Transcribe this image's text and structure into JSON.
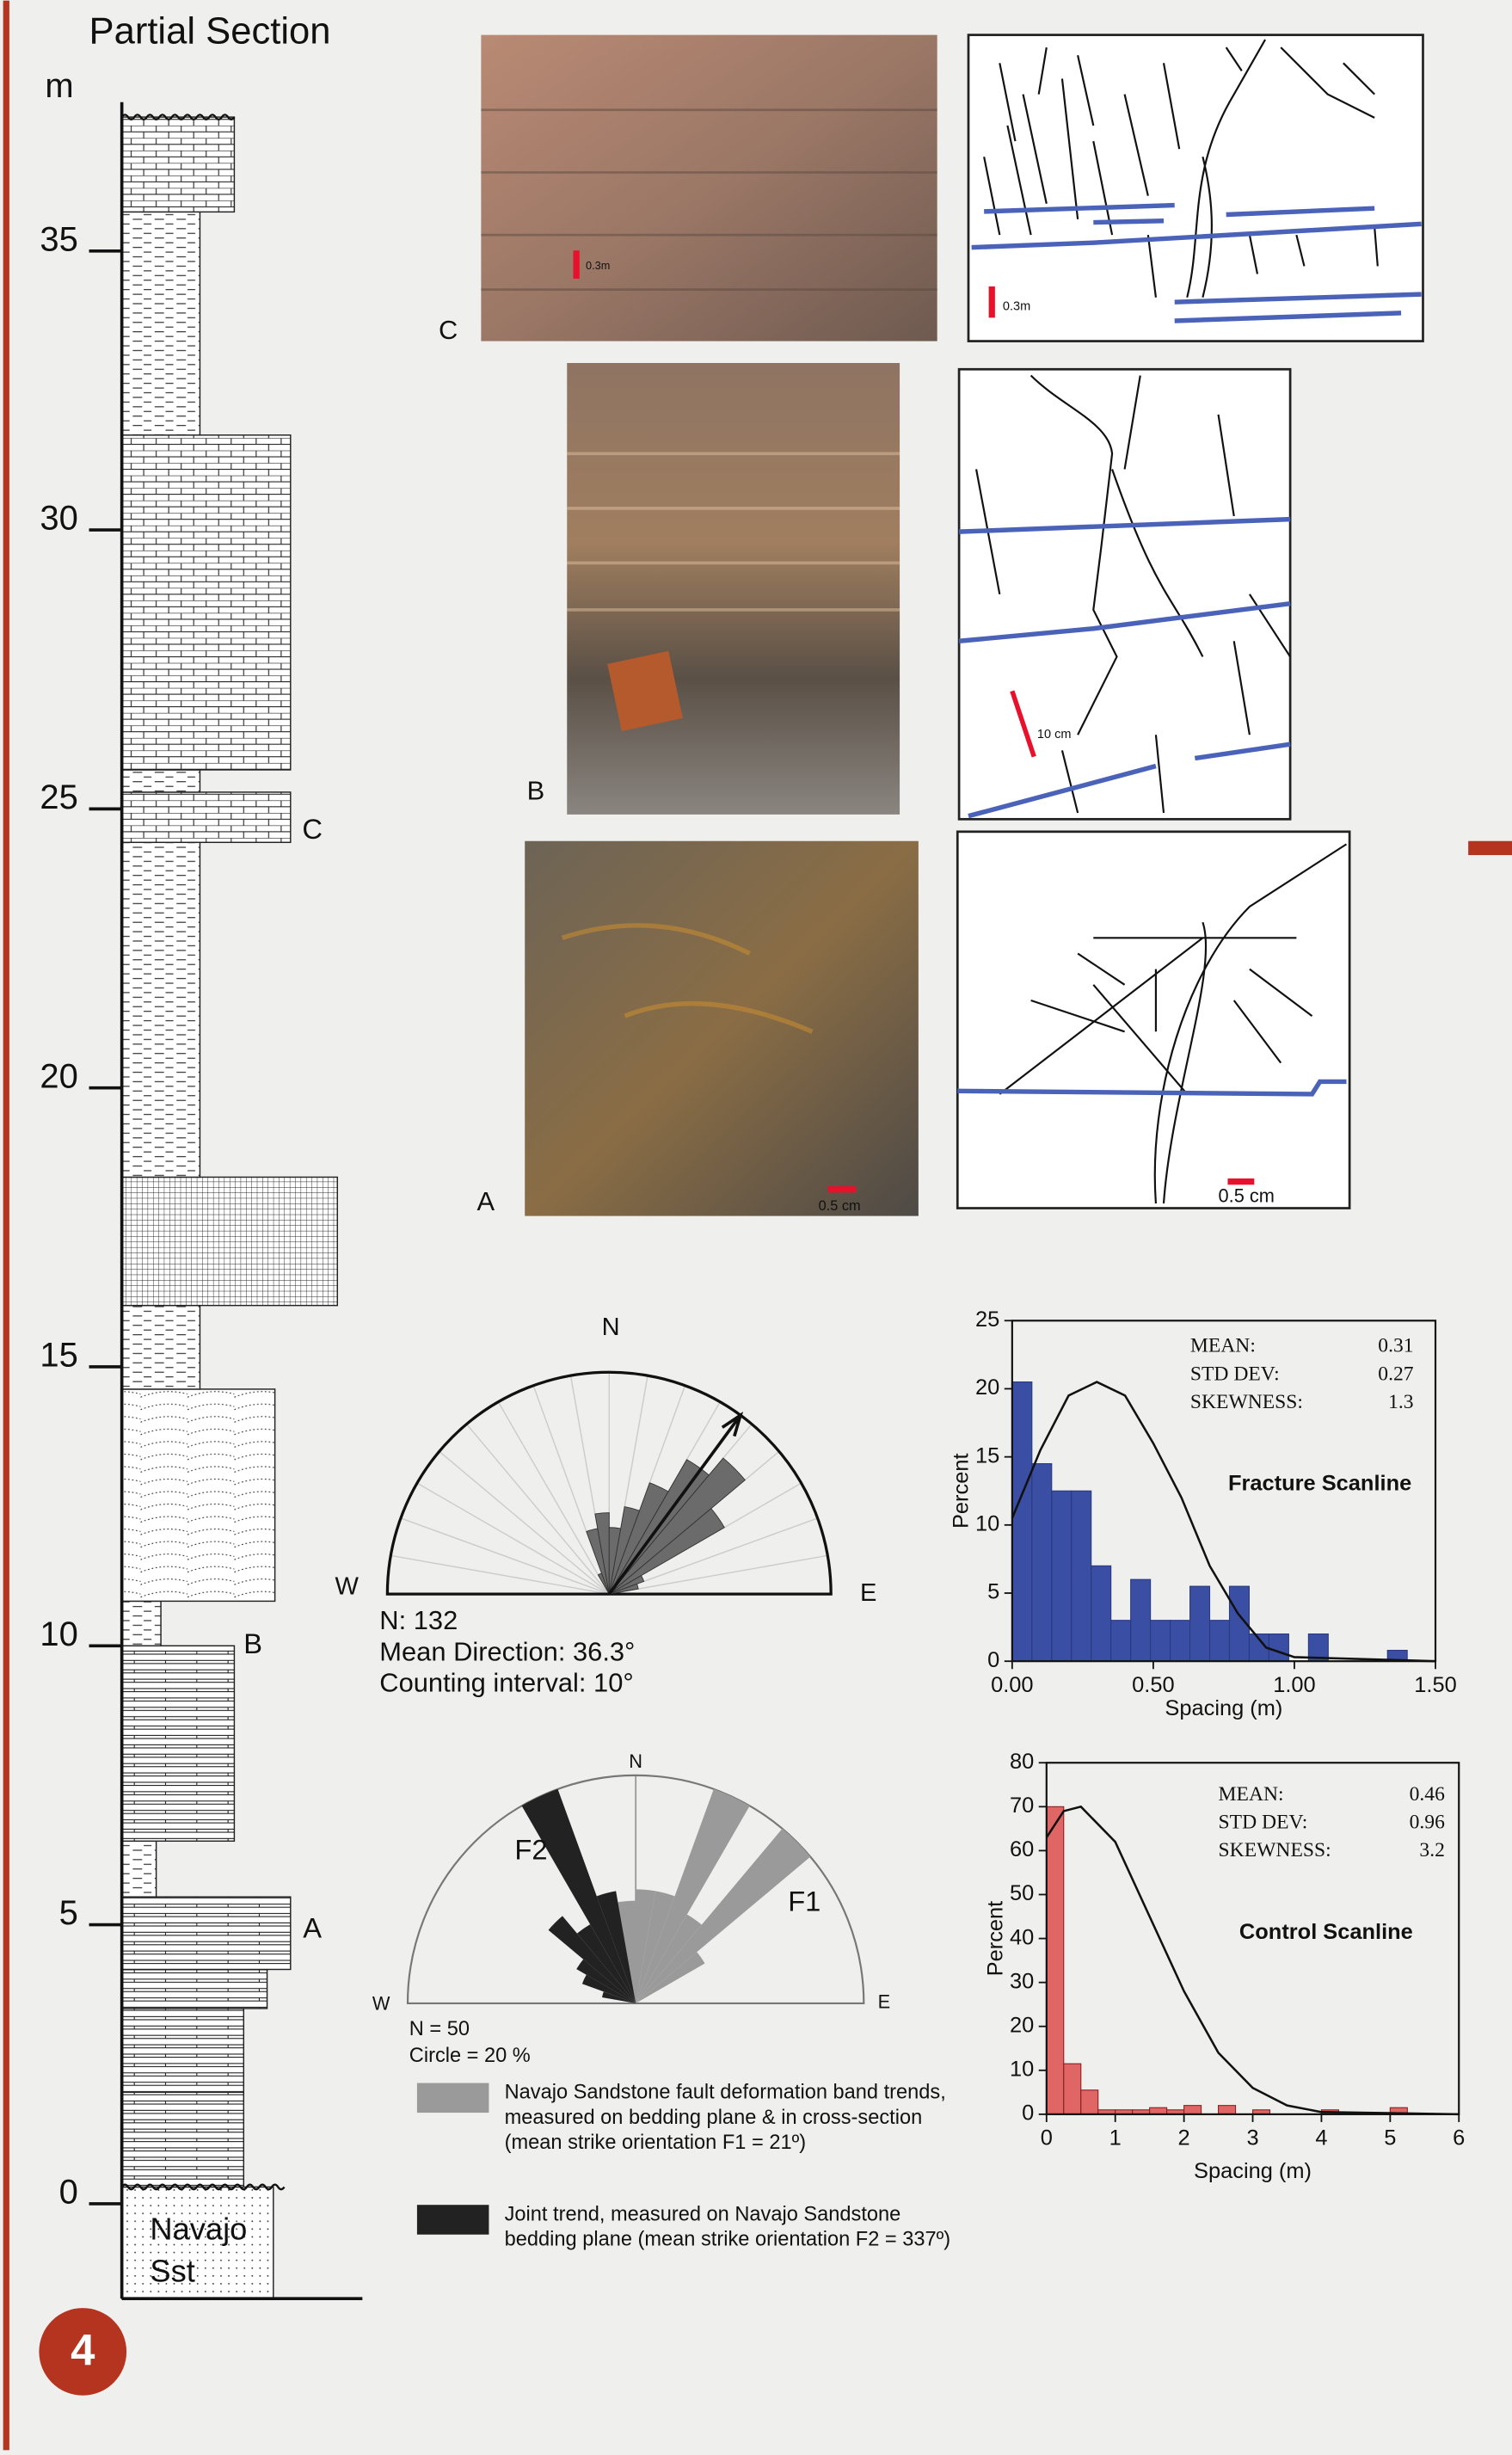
{
  "figure": {
    "page_number": "4"
  },
  "section": {
    "title": "Partial Section",
    "unit": "m",
    "ylim": [
      -1.7,
      37.5
    ],
    "yticks": [
      0,
      5,
      10,
      15,
      20,
      25,
      30,
      35
    ],
    "units": [
      [
        -1.7,
        0.3
      ],
      [
        0.3,
        2.0
      ],
      [
        2.0,
        3.5
      ],
      [
        3.5,
        4.2
      ],
      [
        4.2,
        5.5
      ],
      [
        5.5,
        6.5
      ],
      [
        6.5,
        10.0
      ],
      [
        10.0,
        10.8
      ],
      [
        10.8,
        14.6
      ],
      [
        14.6,
        16.1
      ],
      [
        16.1,
        18.4
      ],
      [
        18.4,
        24.4
      ],
      [
        24.4,
        25.3
      ],
      [
        25.3,
        25.7
      ],
      [
        25.7,
        31.7
      ],
      [
        31.7,
        35.7
      ],
      [
        35.7,
        37.4
      ]
    ],
    "bed_labels": [
      {
        "label": "A",
        "value": 4.9
      },
      {
        "label": "B",
        "value": 10.0
      },
      {
        "label": "C",
        "value": 24.6
      }
    ],
    "formation": [
      "Navajo",
      "Sst"
    ]
  },
  "photos": [
    {
      "label": "C",
      "scale": "0.3m"
    },
    {
      "label": "B",
      "scale": "10 cm"
    },
    {
      "label": "A",
      "scale": "0.5 cm"
    }
  ],
  "chart_data": [
    {
      "type": "rose",
      "compass": {
        "N": "N",
        "W": "W",
        "E": "E"
      },
      "bin_width": 10,
      "directions": [
        -25,
        -15,
        -5,
        5,
        15,
        25,
        35,
        45,
        55,
        65,
        75
      ],
      "values": [
        3,
        9,
        11,
        9,
        12,
        16,
        21,
        24,
        18,
        5,
        4
      ],
      "rlim": [
        0,
        30
      ],
      "mean_direction": 36.3,
      "color": "#6b6b6b",
      "notes": [
        "N: 132",
        "Mean Direction: 36.3°",
        "Counting interval: 10°"
      ]
    },
    {
      "type": "rose",
      "compass": {
        "N": "N",
        "W": "W",
        "E": "E"
      },
      "bin_width": 10,
      "rlim": [
        0,
        20
      ],
      "series": [
        {
          "name": "Navajo Sandstone fault deformation band trends, measured on bedding plane & in cross-section (mean strike orientation F1 = 21º)",
          "label": "F1",
          "color": "#9a9a9a",
          "directions": [
            -5,
            5,
            15,
            25,
            35,
            45,
            55
          ],
          "values": [
            9,
            10,
            10,
            20,
            9,
            20,
            7
          ]
        },
        {
          "name": "Joint trend, measured on Navajo Sandstone bedding plane (mean strike orientation F2 = 337º)",
          "label": "F2",
          "color": "#222222",
          "directions": [
            -15,
            -25,
            -35,
            -45,
            -55,
            -65,
            -75
          ],
          "values": [
            10,
            20,
            8,
            10,
            6,
            5,
            3
          ]
        }
      ],
      "notes": [
        "N = 50",
        "Circle = 20 %"
      ]
    },
    {
      "type": "histogram",
      "title": "Fracture Scanline",
      "xlabel": "Spacing (m)",
      "ylabel": "Percent",
      "color": "#3a4fa3",
      "bins": [
        0,
        0.07,
        0.14,
        0.21,
        0.28,
        0.35,
        0.42,
        0.49,
        0.56,
        0.63,
        0.7,
        0.77,
        0.84,
        0.91,
        0.98,
        1.05,
        1.12,
        1.19,
        1.26,
        1.33,
        1.4
      ],
      "values": [
        20.5,
        14.5,
        12.5,
        12.5,
        7,
        3,
        6,
        3,
        3,
        5.5,
        3,
        5.5,
        2,
        2,
        0,
        2,
        0,
        0,
        0,
        0.8
      ],
      "fit": {
        "x": [
          0,
          0.1,
          0.2,
          0.3,
          0.4,
          0.5,
          0.6,
          0.7,
          0.8,
          0.9,
          1.0,
          1.5
        ],
        "y": [
          10.5,
          15.5,
          19.5,
          20.5,
          19.5,
          16,
          12,
          7,
          3.5,
          1,
          0.3,
          0
        ]
      },
      "xlim": [
        0,
        1.5
      ],
      "xticks": [
        {
          "value": 0,
          "label": "0.00"
        },
        {
          "value": 0.5,
          "label": "0.50"
        },
        {
          "value": 1,
          "label": "1.00"
        },
        {
          "value": 1.5,
          "label": "1.50"
        }
      ],
      "ylim": [
        0,
        25
      ],
      "yticks": [
        0,
        5,
        10,
        15,
        20,
        25
      ],
      "stats": [
        {
          "label": "MEAN:",
          "value": "0.31"
        },
        {
          "label": "STD DEV:",
          "value": "0.27"
        },
        {
          "label": "SKEWNESS:",
          "value": "1.3"
        }
      ]
    },
    {
      "type": "histogram",
      "title": "Control Scanline",
      "xlabel": "Spacing (m)",
      "ylabel": "Percent",
      "color": "#e06666",
      "bins": [
        0,
        0.25,
        0.5,
        0.75,
        1,
        1.25,
        1.5,
        1.75,
        2,
        2.25,
        2.5,
        2.75,
        3,
        3.25,
        3.5,
        3.75,
        4,
        4.25,
        4.5,
        4.75,
        5,
        5.25
      ],
      "values": [
        70,
        11.5,
        5.5,
        1,
        1,
        1,
        1.5,
        1,
        2,
        0,
        2,
        0,
        1,
        0,
        0,
        0,
        1,
        0,
        0,
        0,
        1.5
      ],
      "fit": {
        "x": [
          0,
          0.25,
          0.5,
          1,
          1.5,
          2,
          2.5,
          3,
          3.5,
          4,
          6
        ],
        "y": [
          63,
          69,
          70,
          62,
          45,
          28,
          14,
          6,
          2,
          0.5,
          0
        ]
      },
      "xlim": [
        0,
        6
      ],
      "xticks": [
        0,
        1,
        2,
        3,
        4,
        5,
        6
      ],
      "ylim": [
        0,
        80
      ],
      "yticks": [
        0,
        10,
        20,
        30,
        40,
        50,
        60,
        70,
        80
      ],
      "stats": [
        {
          "label": "MEAN:",
          "value": "0.46"
        },
        {
          "label": "STD DEV:",
          "value": "0.96"
        },
        {
          "label": "SKEWNESS:",
          "value": "3.2"
        }
      ]
    }
  ]
}
